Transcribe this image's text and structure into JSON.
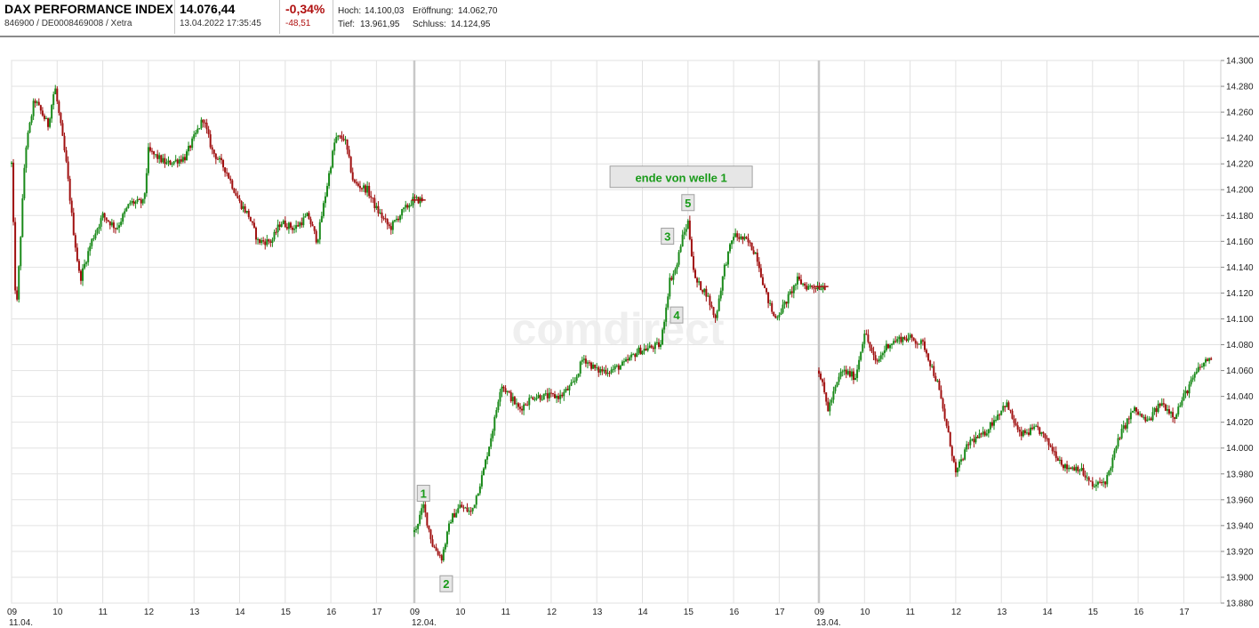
{
  "header": {
    "index_name": "DAX PERFORMANCE INDEX",
    "ids": "846900 / DE0008469008 / Xetra",
    "price": "14.076,44",
    "datetime": "13.04.2022 17:35:45",
    "change_pct": "-0,34%",
    "change_abs": "-48,51",
    "high_label": "Hoch:",
    "high_value": "14.100,03",
    "low_label": "Tief:",
    "low_value": "13.961,95",
    "open_label": "Eröffnung:",
    "open_value": "14.062,70",
    "close_label": "Schluss:",
    "close_value": "14.124,95"
  },
  "watermark": "comdirect",
  "colors": {
    "up": "#1a8a1a",
    "down": "#a01010",
    "grid": "#e2e2e2",
    "separator": "#c8c8c8",
    "label_green": "#1a9b1a",
    "change_red": "#b01010"
  },
  "chart_data": {
    "type": "candlestick",
    "y_ticks": [
      "14.300",
      "14.280",
      "14.260",
      "14.240",
      "14.220",
      "14.200",
      "14.180",
      "14.160",
      "14.140",
      "14.120",
      "14.100",
      "14.080",
      "14.060",
      "14.040",
      "14.020",
      "14.000",
      "13.980",
      "13.960",
      "13.940",
      "13.920",
      "13.900",
      "13.880"
    ],
    "ylim": [
      13880,
      14300
    ],
    "x_ticks": [
      "09",
      "10",
      "11",
      "12",
      "13",
      "14",
      "15",
      "16",
      "17",
      "09",
      "10",
      "11",
      "12",
      "13",
      "14",
      "15",
      "16",
      "17",
      "09",
      "10",
      "11",
      "12",
      "13",
      "14",
      "15",
      "16",
      "17"
    ],
    "day_labels": [
      "11.04.",
      "12.04.",
      "13.04."
    ],
    "grid": true,
    "days": [
      {
        "date": "11.04.",
        "path": [
          [
            9.0,
            14220
          ],
          [
            9.1,
            14100
          ],
          [
            9.3,
            14230
          ],
          [
            9.5,
            14270
          ],
          [
            9.8,
            14250
          ],
          [
            9.95,
            14280
          ],
          [
            10.2,
            14220
          ],
          [
            10.35,
            14170
          ],
          [
            10.5,
            14130
          ],
          [
            10.75,
            14160
          ],
          [
            11.0,
            14180
          ],
          [
            11.3,
            14170
          ],
          [
            11.6,
            14190
          ],
          [
            11.9,
            14190
          ],
          [
            12.0,
            14230
          ],
          [
            12.4,
            14220
          ],
          [
            12.8,
            14225
          ],
          [
            13.2,
            14255
          ],
          [
            13.4,
            14230
          ],
          [
            13.7,
            14215
          ],
          [
            14.0,
            14190
          ],
          [
            14.2,
            14180
          ],
          [
            14.4,
            14160
          ],
          [
            14.7,
            14160
          ],
          [
            14.9,
            14175
          ],
          [
            15.2,
            14170
          ],
          [
            15.5,
            14180
          ],
          [
            15.7,
            14160
          ],
          [
            15.9,
            14200
          ],
          [
            16.1,
            14240
          ],
          [
            16.3,
            14240
          ],
          [
            16.5,
            14205
          ],
          [
            16.8,
            14200
          ],
          [
            17.0,
            14185
          ],
          [
            17.3,
            14170
          ],
          [
            17.5,
            14180
          ],
          [
            17.8,
            14192
          ],
          [
            18.0,
            14192
          ]
        ]
      },
      {
        "date": "12.04.",
        "path": [
          [
            9.0,
            13935
          ],
          [
            9.2,
            13955
          ],
          [
            9.4,
            13925
          ],
          [
            9.6,
            13915
          ],
          [
            9.8,
            13945
          ],
          [
            10.0,
            13955
          ],
          [
            10.25,
            13950
          ],
          [
            10.5,
            13980
          ],
          [
            10.75,
            14020
          ],
          [
            10.9,
            14050
          ],
          [
            11.1,
            14040
          ],
          [
            11.3,
            14030
          ],
          [
            11.6,
            14040
          ],
          [
            11.9,
            14040
          ],
          [
            12.2,
            14040
          ],
          [
            12.5,
            14050
          ],
          [
            12.7,
            14070
          ],
          [
            13.0,
            14060
          ],
          [
            13.3,
            14060
          ],
          [
            13.6,
            14065
          ],
          [
            13.9,
            14075
          ],
          [
            14.4,
            14080
          ],
          [
            14.6,
            14130
          ],
          [
            14.75,
            14140
          ],
          [
            14.85,
            14160
          ],
          [
            15.0,
            14175
          ],
          [
            15.15,
            14130
          ],
          [
            15.4,
            14120
          ],
          [
            15.6,
            14100
          ],
          [
            15.8,
            14140
          ],
          [
            16.0,
            14165
          ],
          [
            16.3,
            14160
          ],
          [
            16.5,
            14150
          ],
          [
            16.7,
            14120
          ],
          [
            16.9,
            14100
          ],
          [
            17.1,
            14110
          ],
          [
            17.4,
            14130
          ],
          [
            17.6,
            14125
          ],
          [
            18.0,
            14125
          ]
        ]
      },
      {
        "date": "13.04.",
        "path": [
          [
            9.0,
            14060
          ],
          [
            9.2,
            14030
          ],
          [
            9.5,
            14060
          ],
          [
            9.8,
            14055
          ],
          [
            10.0,
            14090
          ],
          [
            10.25,
            14065
          ],
          [
            10.5,
            14080
          ],
          [
            10.8,
            14085
          ],
          [
            11.0,
            14085
          ],
          [
            11.3,
            14080
          ],
          [
            11.6,
            14050
          ],
          [
            11.9,
            14000
          ],
          [
            12.0,
            13980
          ],
          [
            12.3,
            14005
          ],
          [
            12.6,
            14010
          ],
          [
            12.9,
            14025
          ],
          [
            13.1,
            14035
          ],
          [
            13.4,
            14010
          ],
          [
            13.8,
            14015
          ],
          [
            14.1,
            14000
          ],
          [
            14.4,
            13985
          ],
          [
            14.7,
            13985
          ],
          [
            15.0,
            13970
          ],
          [
            15.3,
            13975
          ],
          [
            15.6,
            14010
          ],
          [
            15.9,
            14030
          ],
          [
            16.2,
            14020
          ],
          [
            16.5,
            14035
          ],
          [
            16.8,
            14025
          ],
          [
            17.0,
            14040
          ],
          [
            17.3,
            14060
          ],
          [
            17.5,
            14068
          ],
          [
            17.6,
            14070
          ]
        ]
      }
    ],
    "annotations": [
      {
        "label": "ende von welle 1",
        "day": 1,
        "x": 14.85,
        "y": 14210
      },
      {
        "label": "1",
        "day": 1,
        "x": 9.2,
        "y": 13965
      },
      {
        "label": "2",
        "day": 1,
        "x": 9.7,
        "y": 13895
      },
      {
        "label": "3",
        "day": 1,
        "x": 14.55,
        "y": 14164
      },
      {
        "label": "4",
        "day": 1,
        "x": 14.75,
        "y": 14103
      },
      {
        "label": "5",
        "day": 1,
        "x": 15.0,
        "y": 14190
      }
    ]
  }
}
